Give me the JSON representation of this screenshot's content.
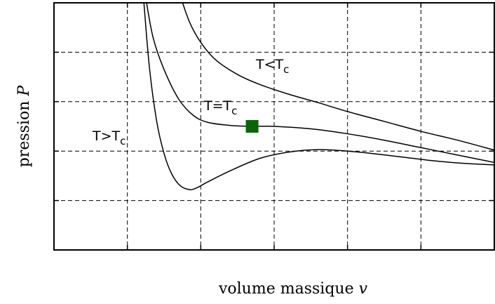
{
  "chart_data": {
    "type": "line",
    "title": "",
    "xlabel": "volume massique",
    "xlabel_var": "v",
    "ylabel": "pression",
    "ylabel_var": "P",
    "xlim": [
      0,
      6
    ],
    "ylim": [
      0,
      5
    ],
    "grid": true,
    "grid_style": "dashed",
    "series": [
      {
        "name": "T<T_c",
        "label_main": "T<T",
        "label_sub": "c",
        "x": [
          1.73,
          1.85,
          2.0,
          2.2,
          2.5,
          2.8,
          3.2,
          3.6,
          4.0,
          4.5,
          5.0,
          5.5,
          6.0
        ],
        "y": [
          5.1,
          4.6,
          4.2,
          3.85,
          3.55,
          3.35,
          3.15,
          2.98,
          2.8,
          2.6,
          2.4,
          2.22,
          2.02
        ]
      },
      {
        "name": "T=T_c",
        "label_main": "T=T",
        "label_sub": "c",
        "x": [
          1.25,
          1.35,
          1.5,
          1.7,
          1.9,
          2.1,
          2.4,
          2.7,
          3.0,
          3.5,
          4.0,
          4.5,
          5.0,
          5.5,
          6.0
        ],
        "y": [
          5.1,
          4.3,
          3.65,
          3.05,
          2.72,
          2.58,
          2.52,
          2.5,
          2.5,
          2.45,
          2.35,
          2.22,
          2.07,
          1.92,
          1.77
        ]
      },
      {
        "name": "T>T_c",
        "label_main": "T>T",
        "label_sub": "c",
        "x": [
          1.22,
          1.3,
          1.4,
          1.5,
          1.6,
          1.72,
          1.85,
          1.95,
          2.1,
          2.4,
          2.8,
          3.2,
          3.6,
          4.0,
          4.4,
          4.8,
          5.2,
          5.6,
          6.0
        ],
        "y": [
          5.1,
          3.7,
          2.6,
          1.95,
          1.55,
          1.3,
          1.22,
          1.26,
          1.38,
          1.6,
          1.85,
          1.98,
          2.03,
          2.0,
          1.94,
          1.87,
          1.8,
          1.75,
          1.72
        ]
      }
    ],
    "critical_point": {
      "x": 2.7,
      "y": 2.5,
      "color": "#0b640b"
    },
    "line_color": "#000000"
  }
}
